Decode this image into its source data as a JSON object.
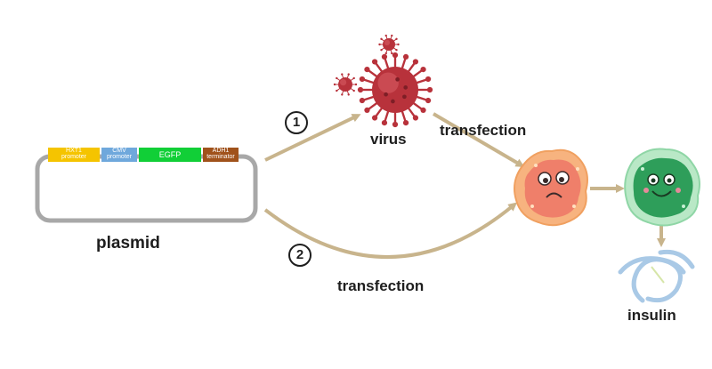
{
  "plasmid": {
    "label": "plasmid",
    "segments": [
      {
        "line1": "HXT1",
        "line2": "promoter",
        "color": "#f5c400"
      },
      {
        "line1": "CMV",
        "line2": "promoter",
        "color": "#6fa8dc"
      },
      {
        "line1": "EGFP",
        "line2": "",
        "color": "#11cf37"
      },
      {
        "line1": "ADH1",
        "line2": "terminator",
        "color": "#a0521b"
      }
    ]
  },
  "virus": {
    "label": "virus"
  },
  "routes": {
    "step1": "1",
    "step2": "2",
    "transfection_top": "transfection",
    "transfection_bottom": "transfection"
  },
  "product": {
    "label": "insulin"
  },
  "colors": {
    "arrow": "#c8b48c",
    "plasmid_outline": "#a8a8a8",
    "virus": "#b8323b",
    "cell_orange": "#f28a5e",
    "cell_green": "#2e9e5a",
    "insulin": "#a9c9e6"
  }
}
